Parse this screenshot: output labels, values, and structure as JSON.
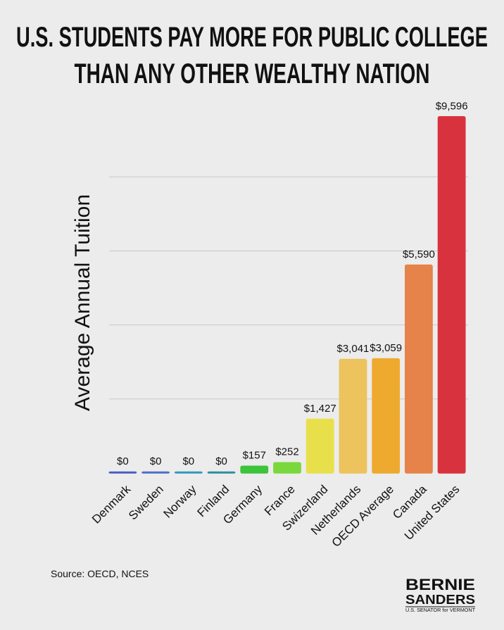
{
  "chart_data": {
    "type": "bar",
    "title": [
      "U.S. STUDENTS PAY MORE FOR PUBLIC COLLEGE",
      "THAN ANY OTHER WEALTHY NATION"
    ],
    "y_label": "Average Annual Tuition",
    "categories": [
      "Denmark",
      "Sweden",
      "Norway",
      "Finland",
      "Germany",
      "France",
      "Swizerland",
      "Netherlands",
      "OECD Average",
      "Canada",
      "United States"
    ],
    "values": [
      0,
      0,
      0,
      0,
      157,
      252,
      1427,
      3041,
      3059,
      5590,
      9596
    ],
    "value_labels": [
      "$0",
      "$0",
      "$0",
      "$0",
      "$157",
      "$252",
      "$1,427",
      "$3,041",
      "$3,059",
      "$5,590",
      "$9,596"
    ],
    "colors": [
      "#4a5bc4",
      "#4a6fc8",
      "#2f9ab8",
      "#2a8fa0",
      "#3cc43c",
      "#7ad83c",
      "#e8e04a",
      "#ecc35c",
      "#eeaa2e",
      "#e5834a",
      "#d9323f"
    ],
    "ylim": [
      0,
      10000
    ],
    "yticks": [
      2000,
      4000,
      6000,
      8000
    ],
    "grid": true,
    "source": "Source: OECD, NCES"
  },
  "logo": {
    "name1": "BERNIE",
    "name2": "SANDERS",
    "tagline": "U.S. SENATOR for VERMONT"
  }
}
